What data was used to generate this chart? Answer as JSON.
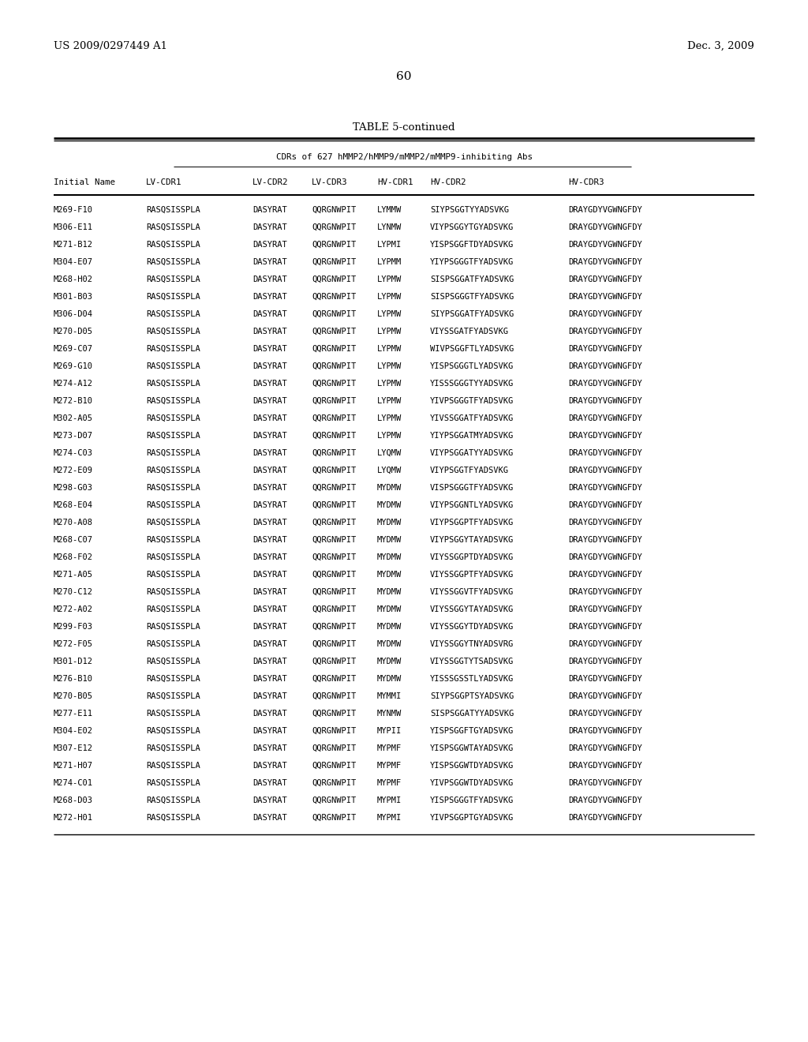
{
  "header_left": "US 2009/0297449 A1",
  "header_right": "Dec. 3, 2009",
  "page_number": "60",
  "table_title": "TABLE 5-continued",
  "subtitle": "CDRs of 627 hMMP2/hMMP9/mMMP2/mMMP9-inhibiting Abs",
  "col_headers": [
    "Initial Name",
    "LV-CDR1",
    "LV-CDR2",
    "LV-CDR3",
    "HV-CDR1",
    "HV-CDR2",
    "HV-CDR3"
  ],
  "rows": [
    [
      "M269-F10",
      "RASQSISSPLA",
      "DASYRAT",
      "QQRGNWPIT",
      "LYMMW",
      "SIYPSGGTYYADSVKG",
      "DRAYGDYVGWNGFDY"
    ],
    [
      "M306-E11",
      "RASQSISSPLA",
      "DASYRAT",
      "QQRGNWPIT",
      "LYNMW",
      "VIYPSGGYTGYADSVKG",
      "DRAYGDYVGWNGFDY"
    ],
    [
      "M271-B12",
      "RASQSISSPLA",
      "DASYRAT",
      "QQRGNWPIT",
      "LYPMI",
      "YISPSGGFTDYADSVKG",
      "DRAYGDYVGWNGFDY"
    ],
    [
      "M304-E07",
      "RASQSISSPLA",
      "DASYRAT",
      "QQRGNWPIT",
      "LYPMM",
      "YIYPSGGGTFYADSVKG",
      "DRAYGDYVGWNGFDY"
    ],
    [
      "M268-H02",
      "RASQSISSPLA",
      "DASYRAT",
      "QQRGNWPIT",
      "LYPMW",
      "SISPSGGATFYADSVKG",
      "DRAYGDYVGWNGFDY"
    ],
    [
      "M301-B03",
      "RASQSISSPLA",
      "DASYRAT",
      "QQRGNWPIT",
      "LYPMW",
      "SISPSGGGTFYADSVKG",
      "DRAYGDYVGWNGFDY"
    ],
    [
      "M306-D04",
      "RASQSISSPLA",
      "DASYRAT",
      "QQRGNWPIT",
      "LYPMW",
      "SIYPSGGATFYADSVKG",
      "DRAYGDYVGWNGFDY"
    ],
    [
      "M270-D05",
      "RASQSISSPLA",
      "DASYRAT",
      "QQRGNWPIT",
      "LYPMW",
      "VIYSSGATFYADSVKG",
      "DRAYGDYVGWNGFDY"
    ],
    [
      "M269-C07",
      "RASQSISSPLA",
      "DASYRAT",
      "QQRGNWPIT",
      "LYPMW",
      "WIVPSGGFTLYADSVKG",
      "DRAYGDYVGWNGFDY"
    ],
    [
      "M269-G10",
      "RASQSISSPLA",
      "DASYRAT",
      "QQRGNWPIT",
      "LYPMW",
      "YISPSGGGTLYADSVKG",
      "DRAYGDYVGWNGFDY"
    ],
    [
      "M274-A12",
      "RASQSISSPLA",
      "DASYRAT",
      "QQRGNWPIT",
      "LYPMW",
      "YISSSGGGTYYADSVKG",
      "DRAYGDYVGWNGFDY"
    ],
    [
      "M272-B10",
      "RASQSISSPLA",
      "DASYRAT",
      "QQRGNWPIT",
      "LYPMW",
      "YIVPSGGGTFYADSVKG",
      "DRAYGDYVGWNGFDY"
    ],
    [
      "M302-A05",
      "RASQSISSPLA",
      "DASYRAT",
      "QQRGNWPIT",
      "LYPMW",
      "YIVSSGGATFYADSVKG",
      "DRAYGDYVGWNGFDY"
    ],
    [
      "M273-D07",
      "RASQSISSPLA",
      "DASYRAT",
      "QQRGNWPIT",
      "LYPMW",
      "YIYPSGGATMYADSVKG",
      "DRAYGDYVGWNGFDY"
    ],
    [
      "M274-C03",
      "RASQSISSPLA",
      "DASYRAT",
      "QQRGNWPIT",
      "LYQMW",
      "VIYPSGGATYYADSVKG",
      "DRAYGDYVGWNGFDY"
    ],
    [
      "M272-E09",
      "RASQSISSPLA",
      "DASYRAT",
      "QQRGNWPIT",
      "LYQMW",
      "VIYPSGGTFYADSVKG",
      "DRAYGDYVGWNGFDY"
    ],
    [
      "M298-G03",
      "RASQSISSPLA",
      "DASYRAT",
      "QQRGNWPIT",
      "MYDMW",
      "VISPSGGGTFYADSVKG",
      "DRAYGDYVGWNGFDY"
    ],
    [
      "M268-E04",
      "RASQSISSPLA",
      "DASYRAT",
      "QQRGNWPIT",
      "MYDMW",
      "VIYPSGGNTLYADSVKG",
      "DRAYGDYVGWNGFDY"
    ],
    [
      "M270-A08",
      "RASQSISSPLA",
      "DASYRAT",
      "QQRGNWPIT",
      "MYDMW",
      "VIYPSGGPTFYADSVKG",
      "DRAYGDYVGWNGFDY"
    ],
    [
      "M268-C07",
      "RASQSISSPLA",
      "DASYRAT",
      "QQRGNWPIT",
      "MYDMW",
      "VIYPSGGYTAYADSVKG",
      "DRAYGDYVGWNGFDY"
    ],
    [
      "M268-F02",
      "RASQSISSPLA",
      "DASYRAT",
      "QQRGNWPIT",
      "MYDMW",
      "VIYSSGGPTDYADSVKG",
      "DRAYGDYVGWNGFDY"
    ],
    [
      "M271-A05",
      "RASQSISSPLA",
      "DASYRAT",
      "QQRGNWPIT",
      "MYDMW",
      "VIYSSGGPTFYADSVKG",
      "DRAYGDYVGWNGFDY"
    ],
    [
      "M270-C12",
      "RASQSISSPLA",
      "DASYRAT",
      "QQRGNWPIT",
      "MYDMW",
      "VIYSSGGVTFYADSVKG",
      "DRAYGDYVGWNGFDY"
    ],
    [
      "M272-A02",
      "RASQSISSPLA",
      "DASYRAT",
      "QQRGNWPIT",
      "MYDMW",
      "VIYSSGGYTAYADSVKG",
      "DRAYGDYVGWNGFDY"
    ],
    [
      "M299-F03",
      "RASQSISSPLA",
      "DASYRAT",
      "QQRGNWPIT",
      "MYDMW",
      "VIYSSGGYTDYADSVKG",
      "DRAYGDYVGWNGFDY"
    ],
    [
      "M272-F05",
      "RASQSISSPLA",
      "DASYRAT",
      "QQRGNWPIT",
      "MYDMW",
      "VIYSSGGYTNYADSVRG",
      "DRAYGDYVGWNGFDY"
    ],
    [
      "M301-D12",
      "RASQSISSPLA",
      "DASYRAT",
      "QQRGNWPIT",
      "MYDMW",
      "VIYSSGGTYTSADSVKG",
      "DRAYGDYVGWNGFDY"
    ],
    [
      "M276-B10",
      "RASQSISSPLA",
      "DASYRAT",
      "QQRGNWPIT",
      "MYDMW",
      "YISSSGSSTLYADSVKG",
      "DRAYGDYVGWNGFDY"
    ],
    [
      "M270-B05",
      "RASQSISSPLA",
      "DASYRAT",
      "QQRGNWPIT",
      "MYMMI",
      "SIYPSGGPTSYADSVKG",
      "DRAYGDYVGWNGFDY"
    ],
    [
      "M277-E11",
      "RASQSISSPLA",
      "DASYRAT",
      "QQRGNWPIT",
      "MYNMW",
      "SISPSGGATYYADSVKG",
      "DRAYGDYVGWNGFDY"
    ],
    [
      "M304-E02",
      "RASQSISSPLA",
      "DASYRAT",
      "QQRGNWPIT",
      "MYPII",
      "YISPSGGFTGYADSVKG",
      "DRAYGDYVGWNGFDY"
    ],
    [
      "M307-E12",
      "RASQSISSPLA",
      "DASYRAT",
      "QQRGNWPIT",
      "MYPMF",
      "YISPSGGWTAYADSVKG",
      "DRAYGDYVGWNGFDY"
    ],
    [
      "M271-H07",
      "RASQSISSPLA",
      "DASYRAT",
      "QQRGNWPIT",
      "MYPMF",
      "YISPSGGWTDYADSVKG",
      "DRAYGDYVGWNGFDY"
    ],
    [
      "M274-C01",
      "RASQSISSPLA",
      "DASYRAT",
      "QQRGNWPIT",
      "MYPMF",
      "YIVPSGGWTDYADSVKG",
      "DRAYGDYVGWNGFDY"
    ],
    [
      "M268-D03",
      "RASQSISSPLA",
      "DASYRAT",
      "QQRGNWPIT",
      "MYPMI",
      "YISPSGGGTFYADSVKG",
      "DRAYGDYVGWNGFDY"
    ],
    [
      "M272-H01",
      "RASQSISSPLA",
      "DASYRAT",
      "QQRGNWPIT",
      "MYPMI",
      "YIVPSGGPTGYADSVKG",
      "DRAYGDYVGWNGFDY"
    ]
  ],
  "bg_color": "#ffffff",
  "text_color": "#000000"
}
